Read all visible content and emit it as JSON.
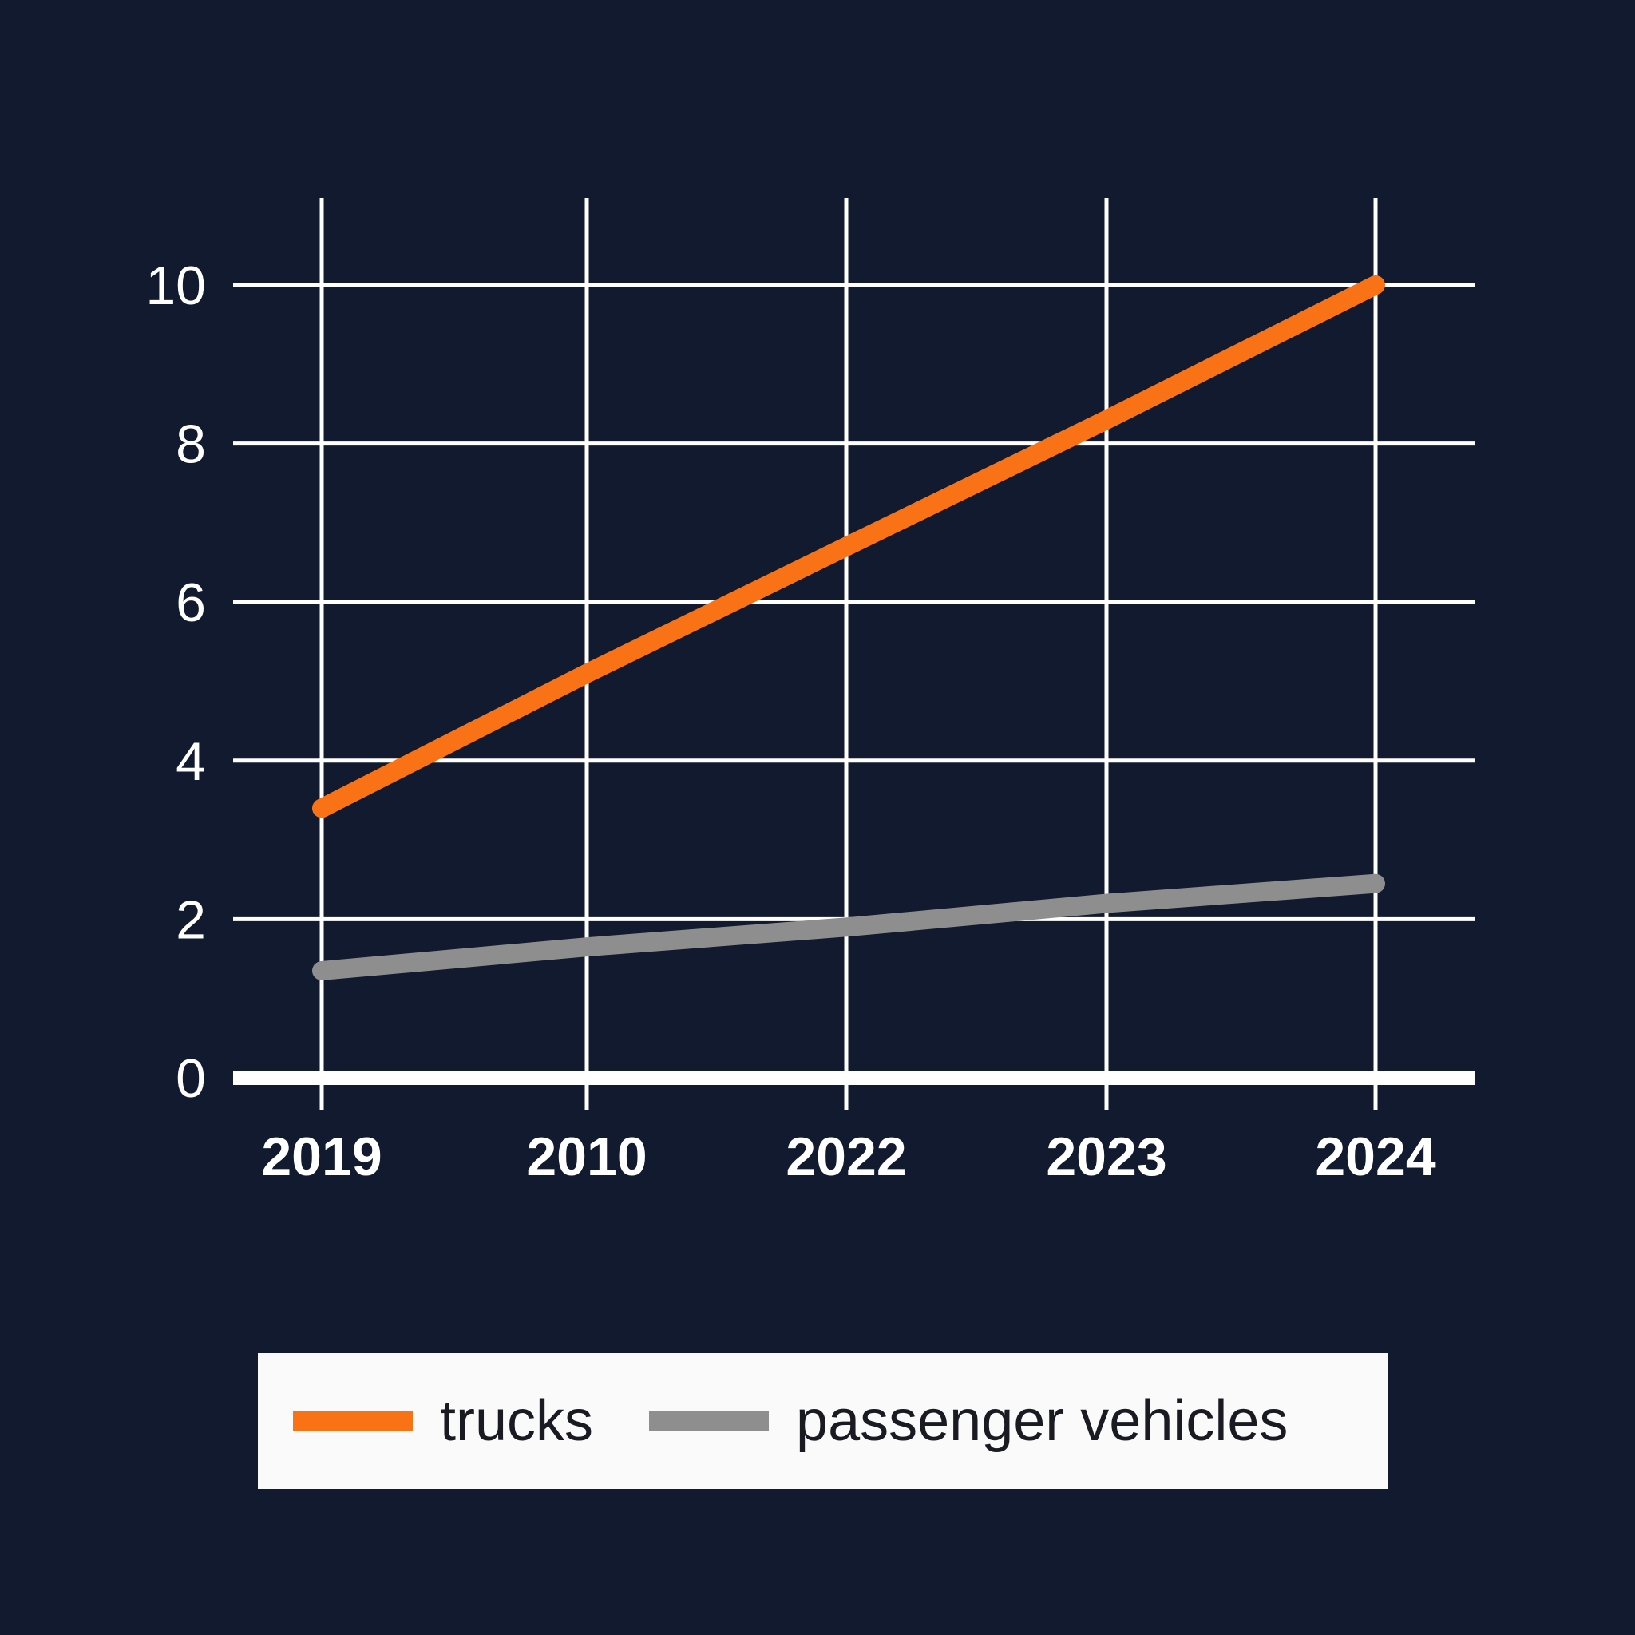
{
  "chart_data": {
    "type": "line",
    "title": "",
    "xlabel": "",
    "ylabel": "",
    "categories": [
      "2019",
      "2010",
      "2022",
      "2023",
      "2024"
    ],
    "series": [
      {
        "name": "trucks",
        "color": "#f97316",
        "values": [
          3.4,
          5.1,
          6.7,
          8.3,
          10.0
        ]
      },
      {
        "name": "passenger vehicles",
        "color": "#8e8e8e",
        "values": [
          1.35,
          1.65,
          1.9,
          2.2,
          2.45
        ]
      }
    ],
    "ylim": [
      0,
      10
    ],
    "yticks": [
      0,
      2,
      4,
      6,
      8,
      10
    ],
    "grid": true,
    "legend_position": "bottom"
  },
  "colors": {
    "background": "#111a2e",
    "grid": "#ffffff",
    "trucks": "#f97316",
    "passenger": "#8e8e8e",
    "legend_bg": "#fafafa"
  },
  "legend": {
    "items": [
      {
        "label": "trucks",
        "color": "#f97316"
      },
      {
        "label": "passenger vehicles",
        "color": "#8e8e8e"
      }
    ]
  }
}
